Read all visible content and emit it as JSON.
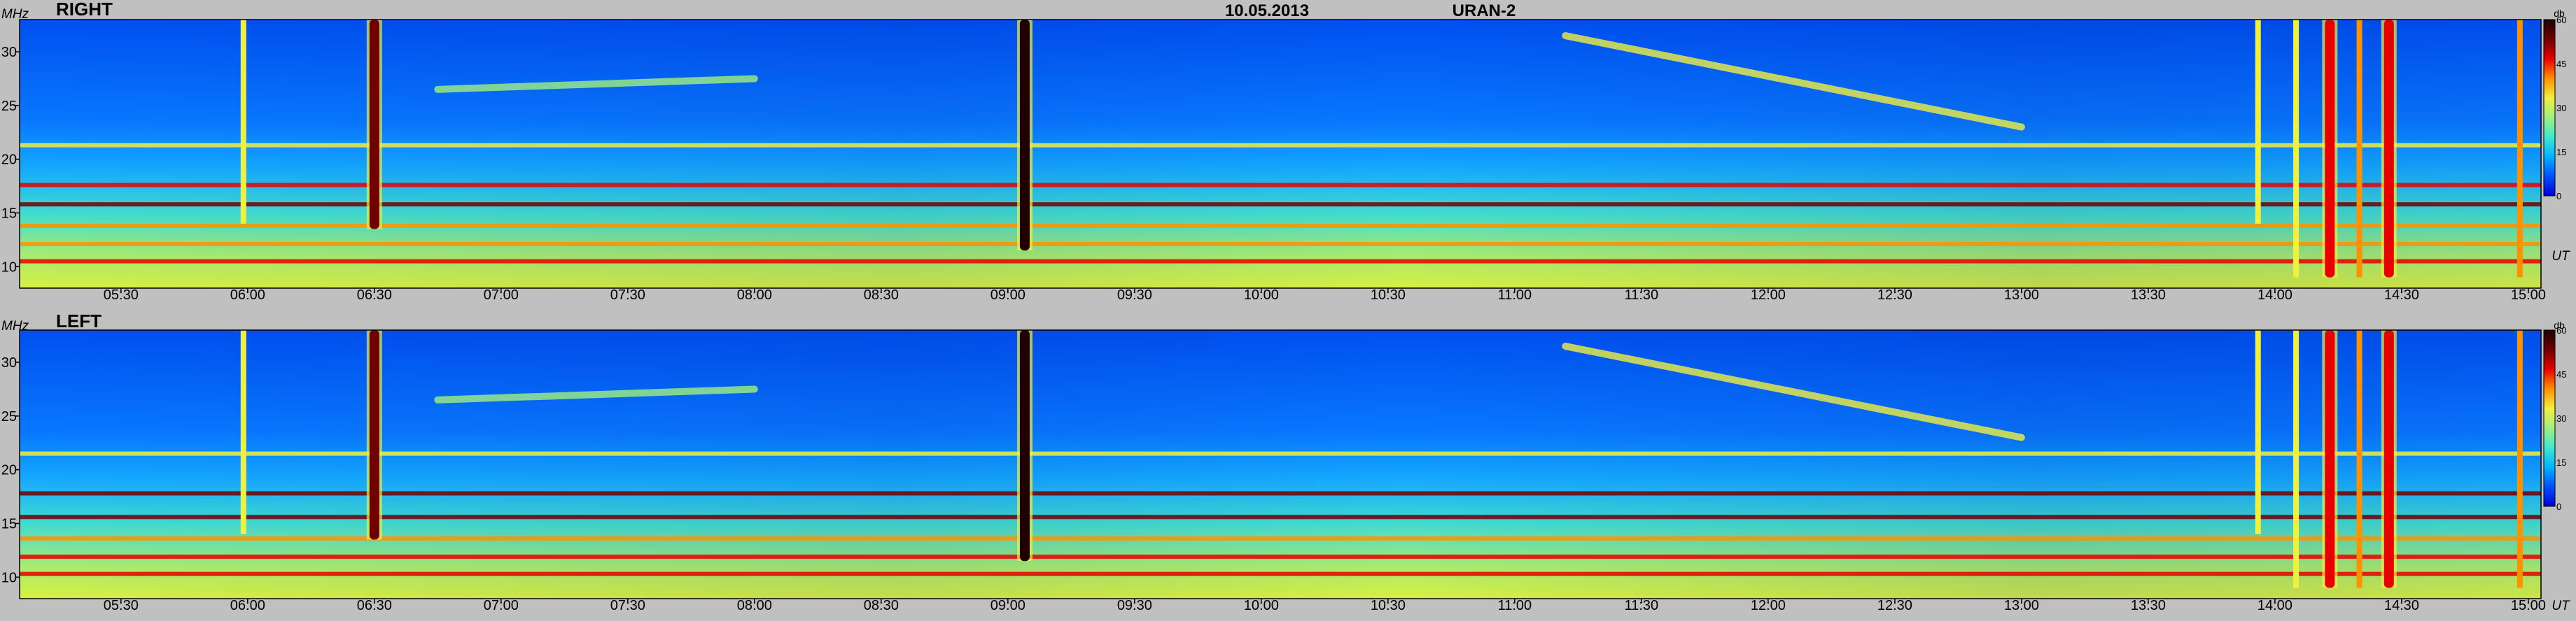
{
  "header": {
    "date": "10.05.2013",
    "instrument": "URAN-2"
  },
  "colors": {
    "background": "#c0c0c0",
    "colormap": [
      "#0000d8",
      "#0050ff",
      "#00b4ff",
      "#40e8d0",
      "#a0f080",
      "#f0f040",
      "#ff9000",
      "#e80000",
      "#700000",
      "#200000"
    ]
  },
  "chart_data": [
    {
      "type": "heatmap",
      "panel_label": "RIGHT",
      "ylabel": "MHz",
      "xlabel": "UT",
      "ylim": [
        8,
        33
      ],
      "yticks": [
        10,
        15,
        20,
        25,
        30
      ],
      "xlim": [
        "05:06",
        "15:03"
      ],
      "xticks": [
        "05:30",
        "06:00",
        "06:30",
        "07:00",
        "07:30",
        "08:00",
        "08:30",
        "09:00",
        "09:30",
        "10:00",
        "10:30",
        "11:00",
        "11:30",
        "12:00",
        "12:30",
        "13:00",
        "13:30",
        "14:00",
        "14:30",
        "15:00"
      ],
      "colorbar": {
        "unit": "db",
        "range": [
          0,
          60
        ],
        "ticks": [
          0,
          15,
          30,
          45,
          60
        ]
      },
      "features": {
        "bursts": [
          {
            "time": "05:59",
            "fmin": 14,
            "fmax": 33,
            "intensity": 32
          },
          {
            "time": "06:30",
            "fmin": 13.5,
            "fmax": 33,
            "intensity": 50
          },
          {
            "time": "09:04",
            "fmin": 11.5,
            "fmax": 33,
            "intensity": 58
          },
          {
            "time": "13:56",
            "fmin": 14,
            "fmax": 33,
            "intensity": 34
          },
          {
            "time": "14:05",
            "fmin": 9,
            "fmax": 33,
            "intensity": 36
          },
          {
            "time": "14:13",
            "fmin": 9,
            "fmax": 33,
            "intensity": 48
          },
          {
            "time": "14:20",
            "fmin": 9,
            "fmax": 33,
            "intensity": 40
          },
          {
            "time": "14:27",
            "fmin": 9,
            "fmax": 33,
            "intensity": 46
          },
          {
            "time": "14:58",
            "fmin": 9,
            "fmax": 33,
            "intensity": 40
          }
        ],
        "drift_tracks": [
          {
            "t_start": "11:12",
            "t_end": "13:00",
            "f_start": 31.5,
            "f_end": 23,
            "intensity": 30
          },
          {
            "t_start": "06:45",
            "t_end": "08:00",
            "f_start": 26.5,
            "f_end": 27.5,
            "intensity": 27
          }
        ],
        "rfi_lines": [
          {
            "freq": 17.6,
            "intensity": 48
          },
          {
            "freq": 15.8,
            "intensity": 52
          },
          {
            "freq": 13.8,
            "intensity": 40
          },
          {
            "freq": 12.1,
            "intensity": 42
          },
          {
            "freq": 10.5,
            "intensity": 44
          },
          {
            "freq": 21.3,
            "intensity": 30
          }
        ]
      }
    },
    {
      "type": "heatmap",
      "panel_label": "LEFT",
      "ylabel": "MHz",
      "xlabel": "UT",
      "ylim": [
        8,
        33
      ],
      "yticks": [
        10,
        15,
        20,
        25,
        30
      ],
      "xlim": [
        "05:06",
        "15:03"
      ],
      "xticks": [
        "05:30",
        "06:00",
        "06:30",
        "07:00",
        "07:30",
        "08:00",
        "08:30",
        "09:00",
        "09:30",
        "10:00",
        "10:30",
        "11:00",
        "11:30",
        "12:00",
        "12:30",
        "13:00",
        "13:30",
        "14:00",
        "14:30",
        "15:00"
      ],
      "colorbar": {
        "unit": "db",
        "range": [
          0,
          60
        ],
        "ticks": [
          0,
          15,
          30,
          45,
          60
        ]
      },
      "features": {
        "bursts": [
          {
            "time": "05:59",
            "fmin": 14,
            "fmax": 33,
            "intensity": 32
          },
          {
            "time": "06:30",
            "fmin": 13.5,
            "fmax": 33,
            "intensity": 50
          },
          {
            "time": "09:04",
            "fmin": 11.5,
            "fmax": 33,
            "intensity": 58
          },
          {
            "time": "13:56",
            "fmin": 14,
            "fmax": 33,
            "intensity": 34
          },
          {
            "time": "14:05",
            "fmin": 9,
            "fmax": 33,
            "intensity": 36
          },
          {
            "time": "14:13",
            "fmin": 9,
            "fmax": 33,
            "intensity": 48
          },
          {
            "time": "14:20",
            "fmin": 9,
            "fmax": 33,
            "intensity": 40
          },
          {
            "time": "14:27",
            "fmin": 9,
            "fmax": 33,
            "intensity": 46
          },
          {
            "time": "14:58",
            "fmin": 9,
            "fmax": 33,
            "intensity": 40
          }
        ],
        "drift_tracks": [
          {
            "t_start": "11:12",
            "t_end": "13:00",
            "f_start": 31.5,
            "f_end": 23,
            "intensity": 30
          },
          {
            "t_start": "06:45",
            "t_end": "08:00",
            "f_start": 26.5,
            "f_end": 27.5,
            "intensity": 27
          }
        ],
        "rfi_lines": [
          {
            "freq": 17.8,
            "intensity": 50
          },
          {
            "freq": 15.6,
            "intensity": 54
          },
          {
            "freq": 13.6,
            "intensity": 42
          },
          {
            "freq": 11.9,
            "intensity": 44
          },
          {
            "freq": 10.3,
            "intensity": 46
          },
          {
            "freq": 21.5,
            "intensity": 30
          }
        ]
      }
    }
  ]
}
